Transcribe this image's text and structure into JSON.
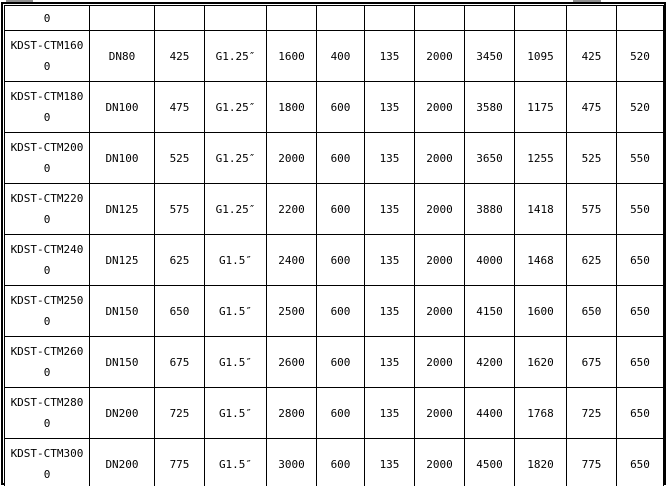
{
  "colors": {
    "background": "#ffffff",
    "grid_line": "#000000",
    "text": "#000000",
    "edge_artifact_gray": "#8f8f8f"
  },
  "table": {
    "columns_count": 12,
    "clipped_top_row": [
      "0",
      "",
      "",
      "",
      "",
      "",
      "",
      "",
      "",
      "",
      "",
      ""
    ],
    "rows": [
      [
        "KDST-CTM1600",
        "DN80",
        "425",
        "G1.25″",
        "1600",
        "400",
        "135",
        "2000",
        "3450",
        "1095",
        "425",
        "520"
      ],
      [
        "KDST-CTM1800",
        "DN100",
        "475",
        "G1.25″",
        "1800",
        "600",
        "135",
        "2000",
        "3580",
        "1175",
        "475",
        "520"
      ],
      [
        "KDST-CTM2000",
        "DN100",
        "525",
        "G1.25″",
        "2000",
        "600",
        "135",
        "2000",
        "3650",
        "1255",
        "525",
        "550"
      ],
      [
        "KDST-CTM2200",
        "DN125",
        "575",
        "G1.25″",
        "2200",
        "600",
        "135",
        "2000",
        "3880",
        "1418",
        "575",
        "550"
      ],
      [
        "KDST-CTM2400",
        "DN125",
        "625",
        "G1.5″",
        "2400",
        "600",
        "135",
        "2000",
        "4000",
        "1468",
        "625",
        "650"
      ],
      [
        "KDST-CTM2500",
        "DN150",
        "650",
        "G1.5″",
        "2500",
        "600",
        "135",
        "2000",
        "4150",
        "1600",
        "650",
        "650"
      ],
      [
        "KDST-CTM2600",
        "DN150",
        "675",
        "G1.5″",
        "2600",
        "600",
        "135",
        "2000",
        "4200",
        "1620",
        "675",
        "650"
      ],
      [
        "KDST-CTM2800",
        "DN200",
        "725",
        "G1.5″",
        "2800",
        "600",
        "135",
        "2000",
        "4400",
        "1768",
        "725",
        "650"
      ],
      [
        "KDST-CTM3000",
        "DN200",
        "775",
        "G1.5″",
        "3000",
        "600",
        "135",
        "2000",
        "4500",
        "1820",
        "775",
        "650"
      ]
    ]
  }
}
